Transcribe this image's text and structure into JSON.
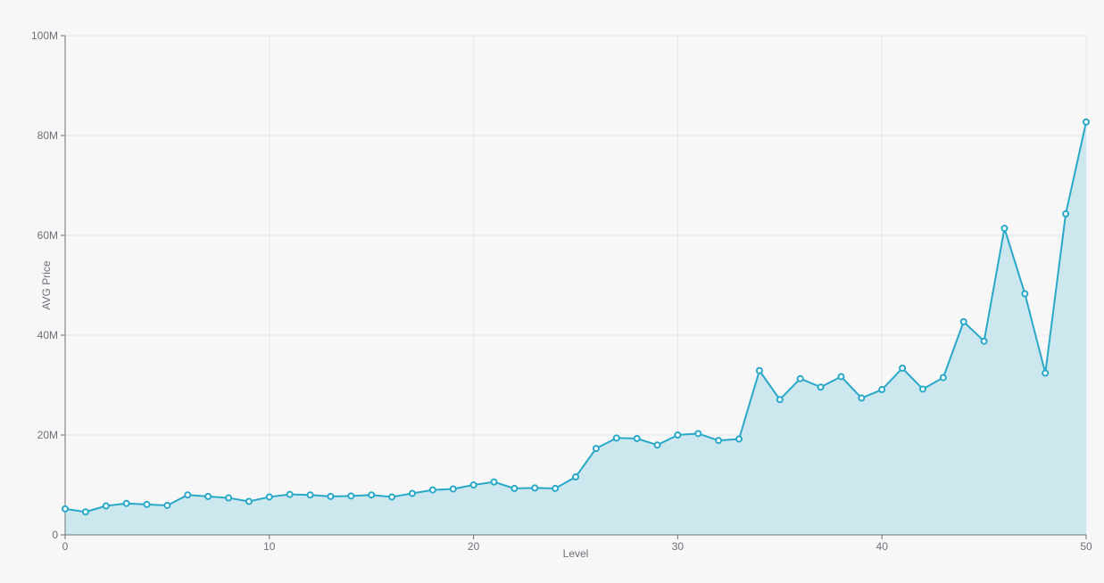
{
  "chart_data": {
    "type": "line",
    "area": true,
    "title": "",
    "xlabel": "Level",
    "ylabel": "AVG Price",
    "xlim": [
      0,
      50
    ],
    "ylim": [
      0,
      100000000
    ],
    "x_ticks": [
      0,
      10,
      20,
      30,
      40,
      50
    ],
    "y_ticks": [
      0,
      20000000,
      40000000,
      60000000,
      80000000,
      100000000
    ],
    "y_tick_labels": [
      "0",
      "20M",
      "40M",
      "60M",
      "80M",
      "100M"
    ],
    "grid": true,
    "legend": "none",
    "colors": {
      "line": "#2aa8c8",
      "area": "#cde7ef",
      "grid": "#e4e7ee",
      "axis": "#6e7079"
    },
    "series": [
      {
        "x": [
          0,
          1,
          2,
          3,
          4,
          5,
          6,
          7,
          8,
          9,
          10,
          11,
          12,
          13,
          14,
          15,
          16,
          17,
          18,
          19,
          20,
          21,
          22,
          23,
          24,
          25,
          26,
          27,
          28,
          29,
          30,
          31,
          32,
          33,
          34,
          35,
          36,
          37,
          38,
          39,
          40,
          41,
          42,
          43,
          44,
          45,
          46,
          47,
          48,
          49,
          50
        ],
        "values": [
          5200000,
          4600000,
          5800000,
          6300000,
          6100000,
          5900000,
          8000000,
          7700000,
          7400000,
          6700000,
          7600000,
          8100000,
          8000000,
          7700000,
          7800000,
          8000000,
          7600000,
          8300000,
          9000000,
          9200000,
          10000000,
          10600000,
          9300000,
          9400000,
          9300000,
          11600000,
          17300000,
          19400000,
          19300000,
          18000000,
          20000000,
          20300000,
          18900000,
          19200000,
          32900000,
          27100000,
          31300000,
          29600000,
          31700000,
          27400000,
          29100000,
          33400000,
          29200000,
          31500000,
          42700000,
          38800000,
          61400000,
          48300000,
          32400000,
          64300000,
          82700000
        ]
      }
    ]
  }
}
